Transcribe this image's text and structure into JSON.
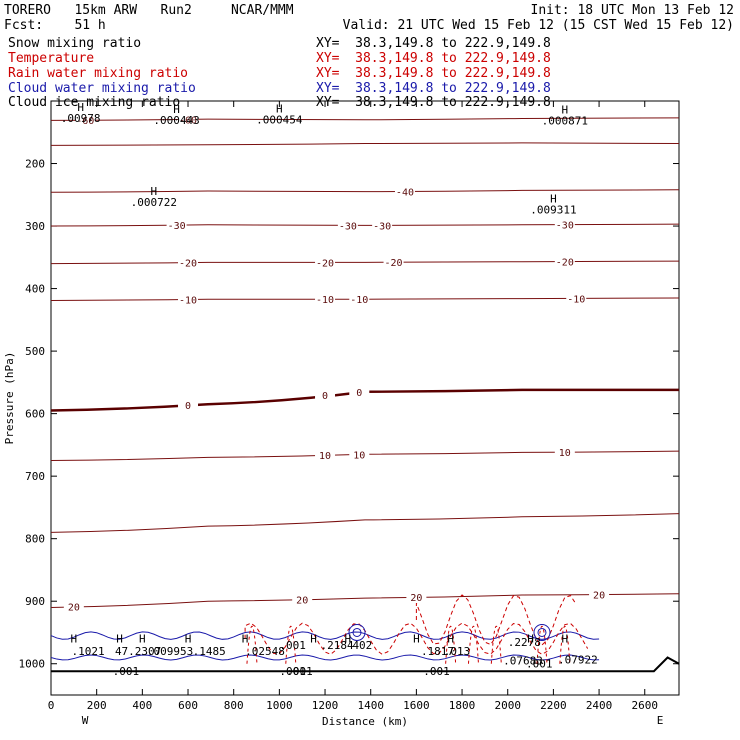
{
  "header": {
    "model": "TORERO   15km ARW   Run2     NCAR/MMM",
    "init": "Init: 18 UTC Mon 13 Feb 12",
    "fcst": "Fcst:    51 h",
    "valid": "Valid: 21 UTC Wed 15 Feb 12 (15 CST Wed 15 Feb 12)"
  },
  "legend": [
    {
      "name": "Snow mixing ratio",
      "xy": "XY=  38.3,149.8 to 222.9,149.8",
      "color": "#000000"
    },
    {
      "name": "Temperature",
      "xy": "XY=  38.3,149.8 to 222.9,149.8",
      "color": "#cc0000"
    },
    {
      "name": "Rain water mixing ratio",
      "xy": "XY=  38.3,149.8 to 222.9,149.8",
      "color": "#cc0000"
    },
    {
      "name": "Cloud water mixing ratio",
      "xy": "XY=  38.3,149.8 to 222.9,149.8",
      "color": "#1a1aaa"
    },
    {
      "name": "Cloud ice mixing ratio",
      "xy": "XY=  38.3,149.8 to 222.9,149.8",
      "color": "#000000"
    }
  ],
  "colors": {
    "isotherm": "#7a1010",
    "zero_isotherm": "#5a0000",
    "rain": "#cc0000",
    "cloud_water": "#1a1aaa",
    "ground": "#000000"
  },
  "chart_data": {
    "type": "cross-section",
    "title": "TORERO 15km ARW Run2 NCAR/MMM",
    "xlabel": "Distance (km)",
    "ylabel": "Pressure (hPa)",
    "xlim": [
      0,
      2750
    ],
    "ylim": [
      1050,
      100
    ],
    "x_ticks": [
      0,
      200,
      400,
      600,
      800,
      1000,
      1200,
      1400,
      1600,
      1800,
      2000,
      2200,
      2400,
      2600
    ],
    "y_ticks": [
      200,
      300,
      400,
      500,
      600,
      700,
      800,
      900,
      1000
    ],
    "x_end_labels": [
      "W",
      "E"
    ],
    "isotherms": [
      {
        "p": [
          131,
          129,
          130,
          128,
          127
        ],
        "label": "-60",
        "labels_at": [
          150,
          600
        ]
      },
      {
        "p": [
          171,
          170,
          168,
          167,
          168
        ],
        "label": "",
        "labels_at": []
      },
      {
        "p": [
          246,
          244,
          245,
          243,
          242
        ],
        "label": "-40",
        "labels_at": [
          1550
        ]
      },
      {
        "p": [
          300,
          298,
          299,
          298,
          297
        ],
        "label": "-30",
        "labels_at": [
          550,
          1300,
          1450,
          2250
        ]
      },
      {
        "p": [
          360,
          358,
          358,
          357,
          356
        ],
        "label": "-20",
        "labels_at": [
          600,
          1200,
          1500,
          2250
        ]
      },
      {
        "p": [
          419,
          417,
          417,
          416,
          415
        ],
        "label": "-10",
        "labels_at": [
          600,
          1200,
          1350,
          2300
        ]
      },
      {
        "p": [
          595,
          585,
          565,
          562,
          562
        ],
        "label": "0",
        "labels_at": [
          600,
          1200,
          1350
        ]
      },
      {
        "p": [
          675,
          670,
          665,
          662,
          660
        ],
        "label": "10",
        "labels_at": [
          1200,
          1350,
          2250
        ]
      },
      {
        "p": [
          790,
          780,
          770,
          765,
          760
        ],
        "label": "",
        "labels_at": []
      },
      {
        "p": [
          910,
          900,
          895,
          890,
          888
        ],
        "label": "20",
        "labels_at": [
          100,
          1100,
          1600,
          2400
        ]
      }
    ],
    "maxima": [
      {
        "x": 130,
        "p": 116,
        "label": "H",
        "value": ".00978"
      },
      {
        "x": 550,
        "p": 119,
        "label": "H",
        "value": ".000443"
      },
      {
        "x": 1000,
        "p": 118,
        "label": "H",
        "value": ".000454"
      },
      {
        "x": 2250,
        "p": 120,
        "label": "H",
        "value": ".000871"
      },
      {
        "x": 450,
        "p": 250,
        "label": "H",
        "value": ".000722"
      },
      {
        "x": 2200,
        "p": 262,
        "label": "H",
        "value": ".009311"
      }
    ],
    "cloud_values": [
      ".1021",
      "47.2307",
      ".009953",
      ".1485",
      ".02548",
      ".2184",
      "402",
      ".1817",
      ".2278",
      ".001",
      ".001"
    ],
    "rain_values": [
      ".07683",
      ".07922",
      ".001",
      ".001",
      ".001",
      ".013",
      ".001"
    ],
    "axis_labels": {
      "w": "W",
      "e": "E"
    }
  }
}
